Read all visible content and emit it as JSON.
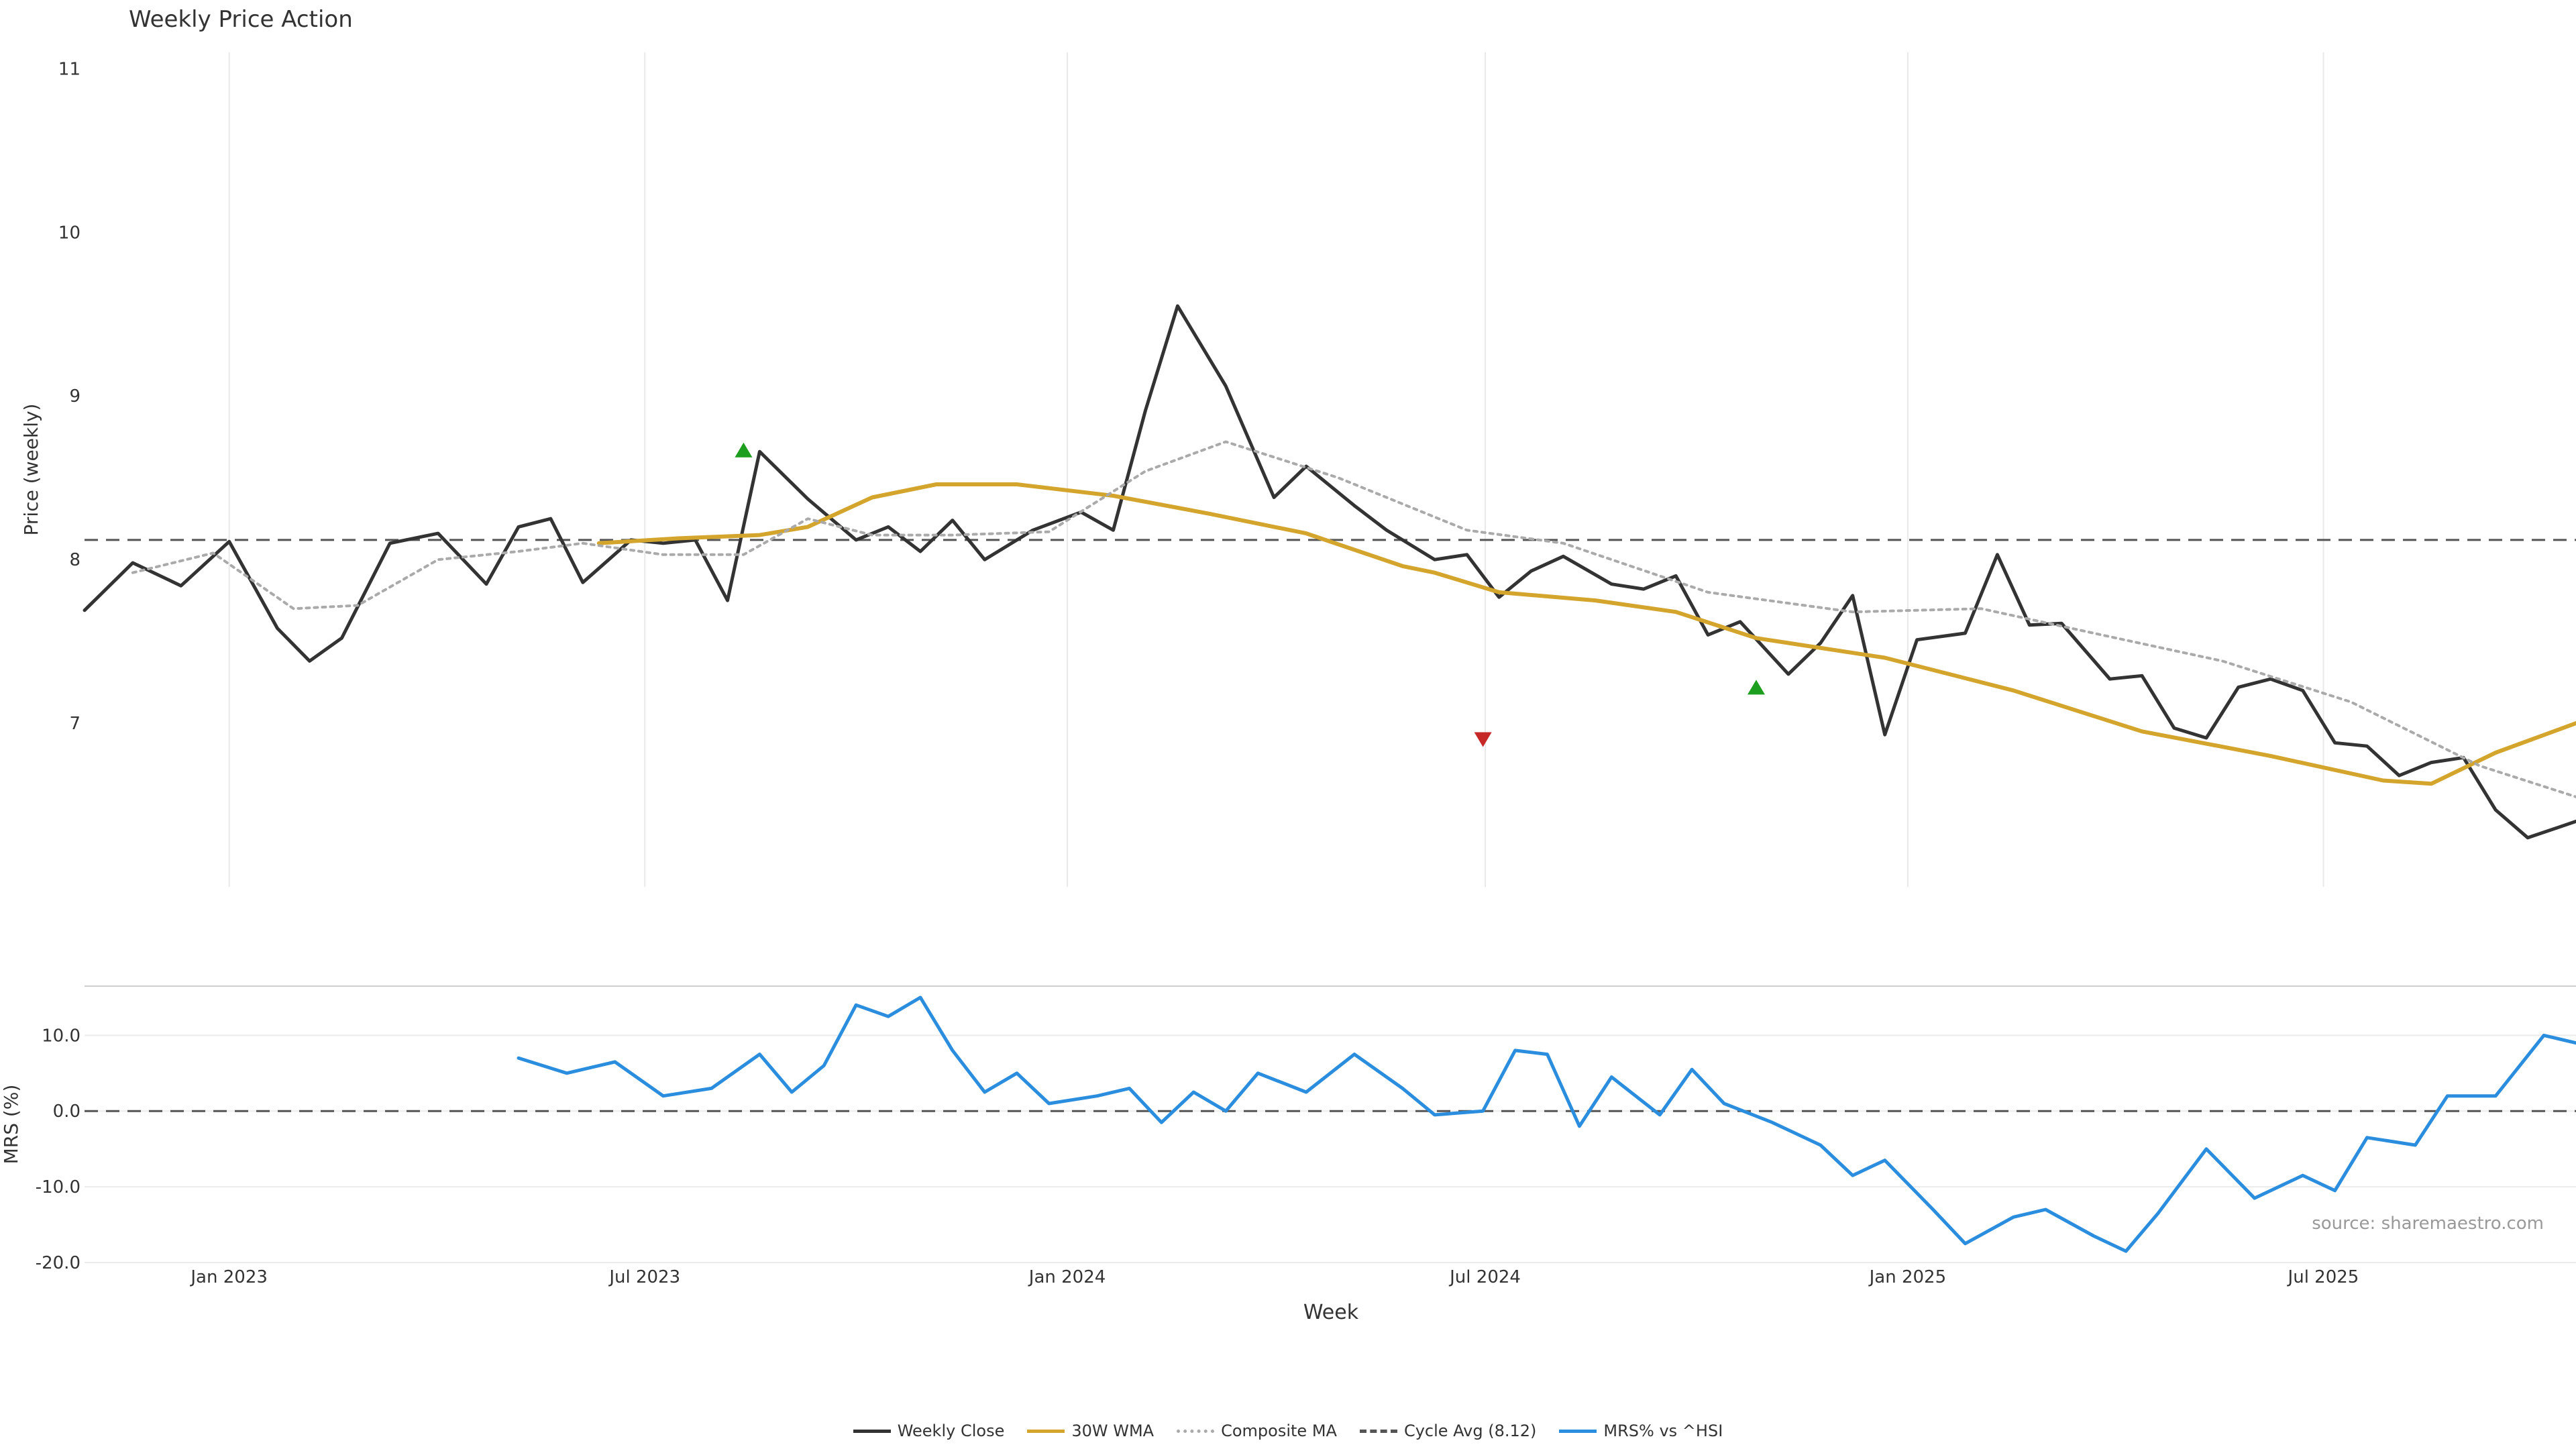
{
  "chart_data": {
    "type": "line",
    "title": "Weekly Price Action",
    "source": "source: sharemaestro.com",
    "xlabel": "Week",
    "x_tick_labels": [
      "Jan 2023",
      "Jul 2023",
      "Jan 2024",
      "Jul 2024",
      "Jan 2025",
      "Jul 2025"
    ],
    "x_tick_dates": [
      "2023-01-01",
      "2023-07-01",
      "2024-01-01",
      "2024-07-01",
      "2025-01-01",
      "2025-07-01"
    ],
    "x_range": [
      "2022-10-30",
      "2025-10-19"
    ],
    "panels": [
      {
        "id": "price",
        "ylabel": "Price (weekly)",
        "ylim": [
          6.0,
          11.1
        ],
        "yticks": [
          7,
          8,
          9,
          10,
          11
        ],
        "grid": "x",
        "reference_line": {
          "name": "Cycle Avg (8.12)",
          "value": 8.12
        }
      },
      {
        "id": "mrs",
        "ylabel": "MRS (%)",
        "ylim": [
          -20,
          16.5
        ],
        "yticks": [
          -20,
          -10,
          0,
          10
        ],
        "ytick_labels": [
          "-20.0",
          "-10.0",
          "0.0",
          "10.0"
        ],
        "grid": "y",
        "reference_line": {
          "value": 0
        }
      }
    ],
    "series": [
      {
        "name": "Weekly Close",
        "panel": "price",
        "color": "#333333",
        "style": "solid",
        "points": [
          [
            "2022-10-30",
            7.69
          ],
          [
            "2022-11-20",
            7.98
          ],
          [
            "2022-12-11",
            7.84
          ],
          [
            "2023-01-01",
            8.11
          ],
          [
            "2023-01-22",
            7.58
          ],
          [
            "2023-02-05",
            7.38
          ],
          [
            "2023-02-19",
            7.52
          ],
          [
            "2023-03-12",
            8.1
          ],
          [
            "2023-04-02",
            8.16
          ],
          [
            "2023-04-23",
            7.85
          ],
          [
            "2023-05-07",
            8.2
          ],
          [
            "2023-05-21",
            8.25
          ],
          [
            "2023-06-04",
            7.86
          ],
          [
            "2023-06-25",
            8.12
          ],
          [
            "2023-07-09",
            8.1
          ],
          [
            "2023-07-23",
            8.12
          ],
          [
            "2023-08-06",
            7.75
          ],
          [
            "2023-08-20",
            8.66
          ],
          [
            "2023-09-10",
            8.37
          ],
          [
            "2023-10-01",
            8.12
          ],
          [
            "2023-10-15",
            8.2
          ],
          [
            "2023-10-29",
            8.05
          ],
          [
            "2023-11-12",
            8.24
          ],
          [
            "2023-11-26",
            8.0
          ],
          [
            "2023-12-17",
            8.18
          ],
          [
            "2024-01-07",
            8.29
          ],
          [
            "2024-01-21",
            8.18
          ],
          [
            "2024-02-04",
            8.91
          ],
          [
            "2024-02-18",
            9.55
          ],
          [
            "2024-03-10",
            9.06
          ],
          [
            "2024-03-31",
            8.38
          ],
          [
            "2024-04-14",
            8.57
          ],
          [
            "2024-05-05",
            8.33
          ],
          [
            "2024-05-19",
            8.18
          ],
          [
            "2024-06-09",
            8.0
          ],
          [
            "2024-06-23",
            8.03
          ],
          [
            "2024-07-07",
            7.77
          ],
          [
            "2024-07-21",
            7.93
          ],
          [
            "2024-08-04",
            8.02
          ],
          [
            "2024-08-25",
            7.85
          ],
          [
            "2024-09-08",
            7.82
          ],
          [
            "2024-09-22",
            7.9
          ],
          [
            "2024-10-06",
            7.54
          ],
          [
            "2024-10-20",
            7.62
          ],
          [
            "2024-11-10",
            7.3
          ],
          [
            "2024-11-24",
            7.49
          ],
          [
            "2024-12-08",
            7.78
          ],
          [
            "2024-12-22",
            6.93
          ],
          [
            "2025-01-05",
            7.51
          ],
          [
            "2025-01-26",
            7.55
          ],
          [
            "2025-02-09",
            8.03
          ],
          [
            "2025-02-23",
            7.6
          ],
          [
            "2025-03-09",
            7.61
          ],
          [
            "2025-03-30",
            7.27
          ],
          [
            "2025-04-13",
            7.29
          ],
          [
            "2025-04-27",
            6.97
          ],
          [
            "2025-05-11",
            6.91
          ],
          [
            "2025-05-25",
            7.22
          ],
          [
            "2025-06-08",
            7.27
          ],
          [
            "2025-06-22",
            7.2
          ],
          [
            "2025-07-06",
            6.88
          ],
          [
            "2025-07-20",
            6.86
          ],
          [
            "2025-08-03",
            6.68
          ],
          [
            "2025-08-17",
            6.76
          ],
          [
            "2025-08-31",
            6.79
          ],
          [
            "2025-09-14",
            6.47
          ],
          [
            "2025-09-28",
            6.3
          ],
          [
            "2025-10-19",
            6.4
          ]
        ]
      },
      {
        "name": "30W WMA",
        "panel": "price",
        "color": "#D4A52C",
        "style": "solid",
        "points": [
          [
            "2023-06-11",
            8.1
          ],
          [
            "2023-07-16",
            8.13
          ],
          [
            "2023-08-20",
            8.15
          ],
          [
            "2023-09-10",
            8.2
          ],
          [
            "2023-10-08",
            8.38
          ],
          [
            "2023-11-05",
            8.46
          ],
          [
            "2023-12-10",
            8.46
          ],
          [
            "2024-01-21",
            8.39
          ],
          [
            "2024-03-03",
            8.28
          ],
          [
            "2024-04-14",
            8.16
          ],
          [
            "2024-05-26",
            7.96
          ],
          [
            "2024-06-09",
            7.92
          ],
          [
            "2024-07-07",
            7.8
          ],
          [
            "2024-08-18",
            7.75
          ],
          [
            "2024-09-22",
            7.68
          ],
          [
            "2024-10-27",
            7.52
          ],
          [
            "2024-12-22",
            7.4
          ],
          [
            "2025-02-16",
            7.2
          ],
          [
            "2025-04-13",
            6.95
          ],
          [
            "2025-06-08",
            6.8
          ],
          [
            "2025-07-27",
            6.65
          ],
          [
            "2025-08-17",
            6.63
          ],
          [
            "2025-09-14",
            6.82
          ],
          [
            "2025-10-19",
            7.0
          ]
        ]
      },
      {
        "name": "Composite MA",
        "panel": "price",
        "color": "#AAAAAA",
        "style": "dotted",
        "points": [
          [
            "2022-11-20",
            7.92
          ],
          [
            "2022-12-25",
            8.04
          ],
          [
            "2023-01-29",
            7.7
          ],
          [
            "2023-02-26",
            7.72
          ],
          [
            "2023-04-02",
            8.0
          ],
          [
            "2023-05-07",
            8.05
          ],
          [
            "2023-06-04",
            8.1
          ],
          [
            "2023-07-09",
            8.03
          ],
          [
            "2023-08-13",
            8.03
          ],
          [
            "2023-09-10",
            8.25
          ],
          [
            "2023-10-08",
            8.15
          ],
          [
            "2023-11-12",
            8.15
          ],
          [
            "2023-12-24",
            8.17
          ],
          [
            "2024-02-04",
            8.54
          ],
          [
            "2024-03-10",
            8.72
          ],
          [
            "2024-04-28",
            8.5
          ],
          [
            "2024-06-23",
            8.18
          ],
          [
            "2024-08-04",
            8.1
          ],
          [
            "2024-10-06",
            7.8
          ],
          [
            "2024-12-08",
            7.68
          ],
          [
            "2025-02-02",
            7.7
          ],
          [
            "2025-03-23",
            7.55
          ],
          [
            "2025-05-18",
            7.38
          ],
          [
            "2025-07-13",
            7.13
          ],
          [
            "2025-09-07",
            6.74
          ],
          [
            "2025-10-19",
            6.55
          ]
        ]
      },
      {
        "name": "MRS% vs ^HSI",
        "panel": "mrs",
        "color": "#2B8DDE",
        "style": "solid",
        "points": [
          [
            "2023-05-07",
            7.0
          ],
          [
            "2023-05-28",
            5.0
          ],
          [
            "2023-06-18",
            6.5
          ],
          [
            "2023-07-09",
            2.0
          ],
          [
            "2023-07-30",
            3.0
          ],
          [
            "2023-08-20",
            7.5
          ],
          [
            "2023-09-03",
            2.5
          ],
          [
            "2023-09-17",
            6.0
          ],
          [
            "2023-10-01",
            14.0
          ],
          [
            "2023-10-15",
            12.5
          ],
          [
            "2023-10-29",
            15.0
          ],
          [
            "2023-11-12",
            8.0
          ],
          [
            "2023-11-26",
            2.5
          ],
          [
            "2023-12-10",
            5.0
          ],
          [
            "2023-12-24",
            1.0
          ],
          [
            "2024-01-14",
            2.0
          ],
          [
            "2024-01-28",
            3.0
          ],
          [
            "2024-02-11",
            -1.5
          ],
          [
            "2024-02-25",
            2.5
          ],
          [
            "2024-03-10",
            0.0
          ],
          [
            "2024-03-24",
            5.0
          ],
          [
            "2024-04-14",
            2.5
          ],
          [
            "2024-05-05",
            7.5
          ],
          [
            "2024-05-26",
            3.0
          ],
          [
            "2024-06-09",
            -0.5
          ],
          [
            "2024-06-30",
            0.0
          ],
          [
            "2024-07-14",
            8.0
          ],
          [
            "2024-07-28",
            7.5
          ],
          [
            "2024-08-11",
            -2.0
          ],
          [
            "2024-08-25",
            4.5
          ],
          [
            "2024-09-15",
            -0.5
          ],
          [
            "2024-09-29",
            5.5
          ],
          [
            "2024-10-13",
            1.0
          ],
          [
            "2024-11-03",
            -1.5
          ],
          [
            "2024-11-24",
            -4.5
          ],
          [
            "2024-12-08",
            -8.5
          ],
          [
            "2024-12-22",
            -6.5
          ],
          [
            "2025-01-12",
            -13.0
          ],
          [
            "2025-01-26",
            -17.5
          ],
          [
            "2025-02-16",
            -14.0
          ],
          [
            "2025-03-02",
            -13.0
          ],
          [
            "2025-03-23",
            -16.5
          ],
          [
            "2025-04-06",
            -18.5
          ],
          [
            "2025-04-20",
            -13.5
          ],
          [
            "2025-05-11",
            -5.0
          ],
          [
            "2025-06-01",
            -11.5
          ],
          [
            "2025-06-22",
            -8.5
          ],
          [
            "2025-07-06",
            -10.5
          ],
          [
            "2025-07-20",
            -3.5
          ],
          [
            "2025-08-10",
            -4.5
          ],
          [
            "2025-08-24",
            2.0
          ],
          [
            "2025-09-14",
            2.0
          ],
          [
            "2025-10-05",
            10.0
          ],
          [
            "2025-10-19",
            9.0
          ]
        ]
      }
    ],
    "markers": [
      {
        "name": "buy",
        "shape": "triangle-up",
        "color": "#1E9E1E",
        "panel": "price",
        "date": "2023-08-13",
        "value": 8.67
      },
      {
        "name": "sell",
        "shape": "triangle-down",
        "color": "#C62828",
        "panel": "price",
        "date": "2024-06-30",
        "value": 6.9
      },
      {
        "name": "buy",
        "shape": "triangle-up",
        "color": "#1E9E1E",
        "panel": "price",
        "date": "2024-10-27",
        "value": 7.22
      }
    ],
    "legend": {
      "placement": "bottom-center",
      "items": [
        {
          "label": "Weekly Close",
          "color": "#333333",
          "style": "solid"
        },
        {
          "label": "30W WMA",
          "color": "#D4A52C",
          "style": "solid"
        },
        {
          "label": "Composite MA",
          "color": "#AAAAAA",
          "style": "dotted"
        },
        {
          "label": "Cycle Avg (8.12)",
          "color": "#555555",
          "style": "dashed"
        },
        {
          "label": "MRS% vs ^HSI",
          "color": "#2B8DDE",
          "style": "solid"
        }
      ]
    }
  }
}
